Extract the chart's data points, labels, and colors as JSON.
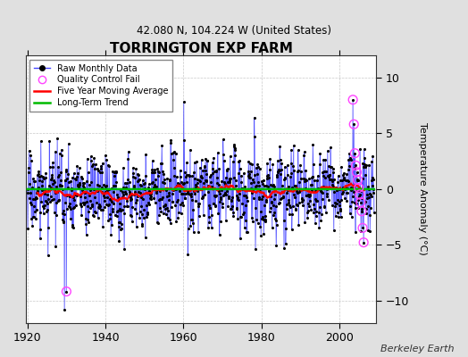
{
  "title": "TORRINGTON EXP FARM",
  "subtitle": "42.080 N, 104.224 W (United States)",
  "ylabel": "Temperature Anomaly (°C)",
  "credit": "Berkeley Earth",
  "year_start": 1920,
  "year_end": 2009,
  "ylim": [
    -12,
    12
  ],
  "yticks": [
    -10,
    -5,
    0,
    5,
    10
  ],
  "bg_color": "#e0e0e0",
  "plot_bg_color": "#ffffff",
  "raw_line_color": "#4444ff",
  "dot_color": "#000000",
  "qc_color": "#ff44ff",
  "moving_avg_color": "#ff0000",
  "trend_color": "#00bb00",
  "seed": 17,
  "noise_std": 1.8,
  "xticks": [
    1920,
    1940,
    1960,
    1980,
    2000
  ]
}
